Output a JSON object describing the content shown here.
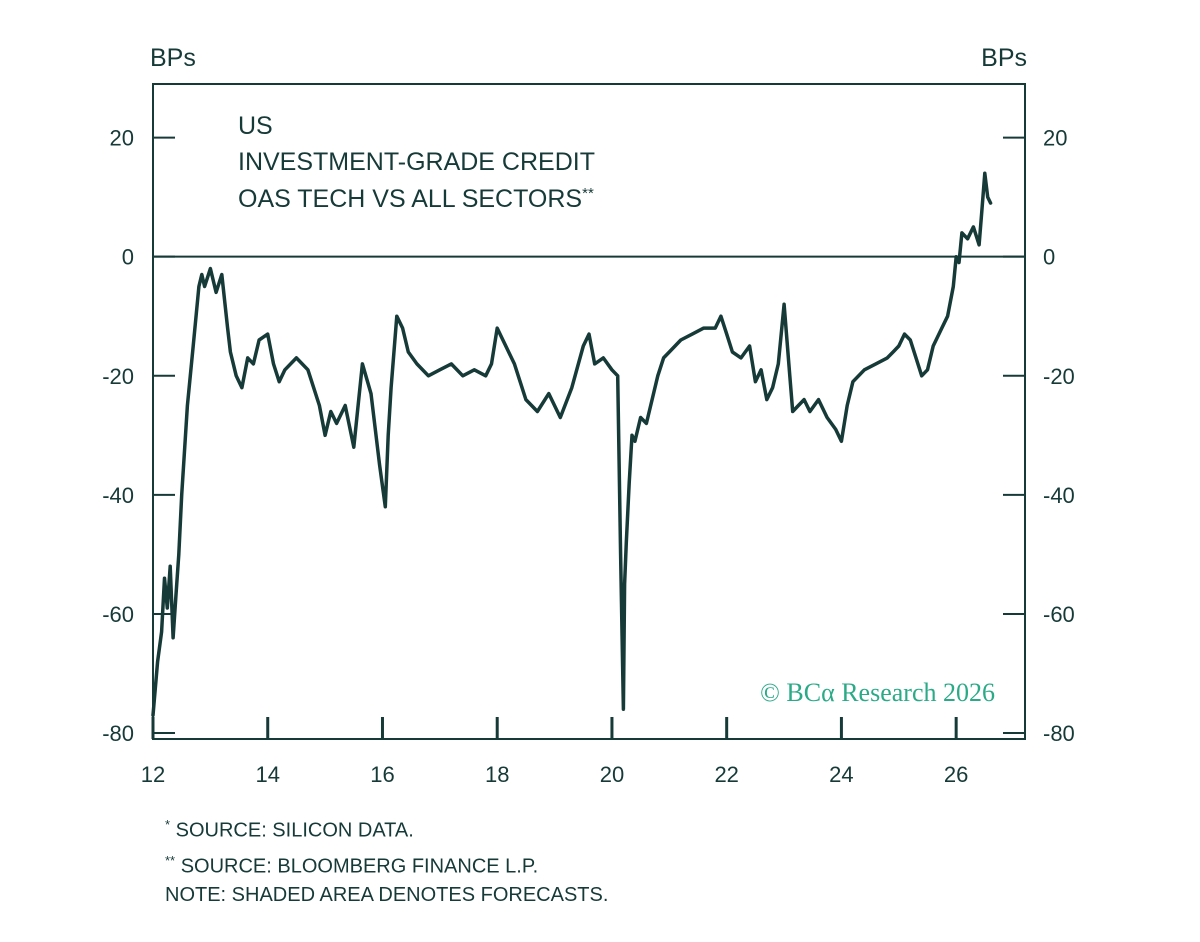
{
  "chart_data": {
    "type": "line",
    "title_lines": [
      "US",
      "INVESTMENT-GRADE CREDIT",
      "OAS TECH VS ALL SECTORS"
    ],
    "title_superscript": "**",
    "ylabel_left": "BPs",
    "ylabel_right": "BPs",
    "xlim": [
      2012,
      2027.2
    ],
    "ylim": [
      -81,
      29
    ],
    "y_ticks": [
      20,
      0,
      -20,
      -40,
      -60,
      -80
    ],
    "x_ticks": [
      {
        "value": 2012,
        "label": "12"
      },
      {
        "value": 2014,
        "label": "14"
      },
      {
        "value": 2016,
        "label": "16"
      },
      {
        "value": 2018,
        "label": "18"
      },
      {
        "value": 2020,
        "label": "20"
      },
      {
        "value": 2022,
        "label": "22"
      },
      {
        "value": 2024,
        "label": "24"
      },
      {
        "value": 2026,
        "label": "26"
      }
    ],
    "zero_line": true,
    "series": [
      {
        "color": "#163a38",
        "x": [
          2012.0,
          2012.08,
          2012.15,
          2012.2,
          2012.25,
          2012.3,
          2012.35,
          2012.4,
          2012.45,
          2012.5,
          2012.6,
          2012.7,
          2012.8,
          2012.85,
          2012.9,
          2013.0,
          2013.1,
          2013.2,
          2013.3,
          2013.35,
          2013.45,
          2013.55,
          2013.65,
          2013.75,
          2013.85,
          2014.0,
          2014.1,
          2014.2,
          2014.3,
          2014.5,
          2014.7,
          2014.9,
          2015.0,
          2015.1,
          2015.2,
          2015.35,
          2015.5,
          2015.65,
          2015.8,
          2015.95,
          2016.05,
          2016.1,
          2016.15,
          2016.25,
          2016.35,
          2016.45,
          2016.6,
          2016.8,
          2017.0,
          2017.2,
          2017.4,
          2017.6,
          2017.8,
          2017.9,
          2018.0,
          2018.1,
          2018.3,
          2018.5,
          2018.7,
          2018.9,
          2019.1,
          2019.3,
          2019.5,
          2019.6,
          2019.7,
          2019.85,
          2020.0,
          2020.1,
          2020.15,
          2020.2,
          2020.22,
          2020.25,
          2020.3,
          2020.35,
          2020.4,
          2020.5,
          2020.6,
          2020.7,
          2020.8,
          2020.9,
          2021.0,
          2021.2,
          2021.4,
          2021.6,
          2021.8,
          2021.9,
          2022.0,
          2022.1,
          2022.25,
          2022.4,
          2022.5,
          2022.6,
          2022.7,
          2022.8,
          2022.9,
          2023.0,
          2023.1,
          2023.15,
          2023.25,
          2023.35,
          2023.45,
          2023.6,
          2023.75,
          2023.9,
          2024.0,
          2024.1,
          2024.2,
          2024.4,
          2024.6,
          2024.8,
          2024.9,
          2025.0,
          2025.1,
          2025.2,
          2025.3,
          2025.4,
          2025.5,
          2025.6,
          2025.75,
          2025.85,
          2025.95,
          2026.0,
          2026.05,
          2026.1,
          2026.2,
          2026.3,
          2026.4,
          2026.45,
          2026.5,
          2026.55,
          2026.6
        ],
        "y": [
          -77,
          -68,
          -63,
          -54,
          -59,
          -52,
          -64,
          -57,
          -50,
          -40,
          -25,
          -15,
          -5,
          -3,
          -5,
          -2,
          -6,
          -3,
          -12,
          -16,
          -20,
          -22,
          -17,
          -18,
          -14,
          -13,
          -18,
          -21,
          -19,
          -17,
          -19,
          -25,
          -30,
          -26,
          -28,
          -25,
          -32,
          -18,
          -23,
          -35,
          -42,
          -30,
          -22,
          -10,
          -12,
          -16,
          -18,
          -20,
          -19,
          -18,
          -20,
          -19,
          -20,
          -18,
          -12,
          -14,
          -18,
          -24,
          -26,
          -23,
          -27,
          -22,
          -15,
          -13,
          -18,
          -17,
          -19,
          -20,
          -50,
          -76,
          -55,
          -48,
          -38,
          -30,
          -31,
          -27,
          -28,
          -24,
          -20,
          -17,
          -16,
          -14,
          -13,
          -12,
          -12,
          -10,
          -13,
          -16,
          -17,
          -15,
          -21,
          -19,
          -24,
          -22,
          -18,
          -8,
          -20,
          -26,
          -25,
          -24,
          -26,
          -24,
          -27,
          -29,
          -31,
          -25,
          -21,
          -19,
          -18,
          -17,
          -16,
          -15,
          -13,
          -14,
          -17,
          -20,
          -19,
          -15,
          -12,
          -10,
          -5,
          0,
          -1,
          4,
          3,
          5,
          2,
          8,
          14,
          10,
          9
        ]
      }
    ]
  },
  "watermark": "© BCα Research 2026",
  "watermark_color": "#2aaa87",
  "notes": {
    "source1_mark": "*",
    "source1": "SOURCE: SILICON DATA.",
    "source2_mark": "**",
    "source2": "SOURCE: BLOOMBERG FINANCE L.P.",
    "note": "NOTE: SHADED AREA DENOTES FORECASTS."
  }
}
